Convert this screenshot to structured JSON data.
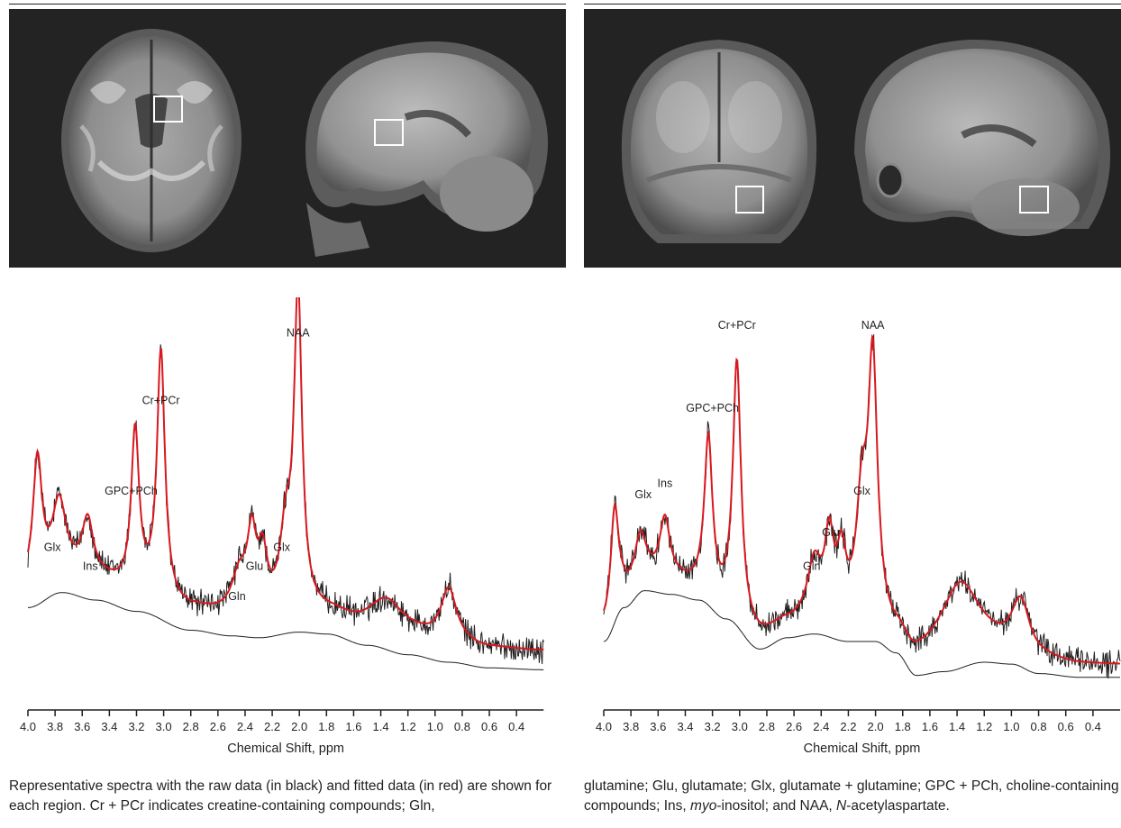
{
  "caption": {
    "left": {
      "p1": "Representative spectra with the raw data (in black) and fitted data (in red) are shown for each region. Cr + PCr indicates creatine-containing compounds; Gln,"
    },
    "right": {
      "p1": "glutamine; Glu, glutamate; Glx, glutamate + glutamine; GPC + PCh, choline-containing compounds; Ins, ",
      "p1_italic": "myo",
      "p2": "-inositol; and NAA, ",
      "p2_italic": "N",
      "p3": "-acetylaspartate."
    }
  },
  "colors": {
    "raw": "#231f20",
    "fit": "#d7191f",
    "baseline": "#231f20",
    "mri_background": "#232323",
    "voxel": "#ffffff"
  },
  "chart_data": [
    {
      "type": "line",
      "xlabel": "Chemical Shift, ppm",
      "ylabel": "",
      "xlim": [
        4.0,
        0.2
      ],
      "ylim": [
        0,
        1
      ],
      "x_reversed": true,
      "xticks": [
        4.0,
        3.8,
        3.6,
        3.4,
        3.2,
        3.0,
        2.8,
        2.6,
        2.4,
        2.2,
        2.0,
        1.8,
        1.6,
        1.4,
        1.2,
        1.0,
        0.8,
        0.6,
        0.4
      ],
      "xtick_labels": [
        "4.0",
        "3.8",
        "3.6",
        "3.4",
        "3.2",
        "3.0",
        "2.8",
        "2.6",
        "2.4",
        "2.2",
        "2.0",
        "1.8",
        "1.6",
        "1.4",
        "1.2",
        "1.0",
        "0.8",
        "0.6",
        "0.4"
      ],
      "baseline_value": 0.05,
      "baseline": [
        [
          4.0,
          0.2
        ],
        [
          3.75,
          0.24
        ],
        [
          3.5,
          0.22
        ],
        [
          3.2,
          0.19
        ],
        [
          2.8,
          0.14
        ],
        [
          2.5,
          0.125
        ],
        [
          2.3,
          0.12
        ],
        [
          2.0,
          0.135
        ],
        [
          1.8,
          0.13
        ],
        [
          1.5,
          0.1
        ],
        [
          1.2,
          0.075
        ],
        [
          0.9,
          0.055
        ],
        [
          0.6,
          0.04
        ],
        [
          0.2,
          0.035
        ]
      ],
      "peaks": [
        {
          "name": "peak_3.93",
          "center": 3.93,
          "height": 0.33,
          "width": 0.04
        },
        {
          "name": "Glx",
          "center": 3.77,
          "height": 0.18,
          "width": 0.06
        },
        {
          "name": "Ins",
          "center": 3.56,
          "height": 0.15,
          "width": 0.05
        },
        {
          "name": "GPC+PCh",
          "center": 3.21,
          "height": 0.42,
          "width": 0.035
        },
        {
          "name": "Cr+PCr",
          "center": 3.02,
          "height": 0.65,
          "width": 0.035
        },
        {
          "name": "Gln",
          "center": 2.44,
          "height": 0.1,
          "width": 0.07
        },
        {
          "name": "Glu",
          "center": 2.35,
          "height": 0.19,
          "width": 0.04
        },
        {
          "name": "Glu2",
          "center": 2.27,
          "height": 0.14,
          "width": 0.04
        },
        {
          "name": "Glx",
          "center": 2.1,
          "height": 0.19,
          "width": 0.05
        },
        {
          "name": "NAA",
          "center": 2.01,
          "height": 0.83,
          "width": 0.035
        },
        {
          "name": "lip1.35",
          "center": 1.35,
          "height": 0.08,
          "width": 0.15
        },
        {
          "name": "lip0.9",
          "center": 0.9,
          "height": 0.14,
          "width": 0.07
        }
      ],
      "labels": [
        {
          "text": "NAA",
          "x": 2.01,
          "y": 0.92
        },
        {
          "text": "Cr+PCr",
          "x": 3.02,
          "y": 0.74
        },
        {
          "text": "GPC+PCh",
          "x": 3.24,
          "y": 0.5
        },
        {
          "text": "Glx",
          "x": 3.82,
          "y": 0.35
        },
        {
          "text": "Ins",
          "x": 3.54,
          "y": 0.3
        },
        {
          "text": "Glu",
          "x": 2.33,
          "y": 0.3
        },
        {
          "text": "Gln",
          "x": 2.46,
          "y": 0.22
        },
        {
          "text": "Glx",
          "x": 2.13,
          "y": 0.35
        }
      ]
    },
    {
      "type": "line",
      "xlabel": "Chemical Shift, ppm",
      "ylabel": "",
      "xlim": [
        4.0,
        0.2
      ],
      "ylim": [
        0,
        1
      ],
      "x_reversed": true,
      "xticks": [
        4.0,
        3.8,
        3.6,
        3.4,
        3.2,
        3.0,
        2.8,
        2.6,
        2.4,
        2.2,
        2.0,
        1.8,
        1.6,
        1.4,
        1.2,
        1.0,
        0.8,
        0.6,
        0.4
      ],
      "xtick_labels": [
        "4.0",
        "3.8",
        "3.6",
        "3.4",
        "3.2",
        "3.0",
        "2.8",
        "2.6",
        "2.4",
        "2.2",
        "2.0",
        "1.8",
        "1.6",
        "1.4",
        "1.2",
        "1.0",
        "0.8",
        "0.6",
        "0.4"
      ],
      "baseline_value": 0.03,
      "baseline": [
        [
          4.0,
          0.11
        ],
        [
          3.85,
          0.2
        ],
        [
          3.7,
          0.245
        ],
        [
          3.5,
          0.235
        ],
        [
          3.3,
          0.22
        ],
        [
          3.1,
          0.17
        ],
        [
          2.85,
          0.09
        ],
        [
          2.65,
          0.12
        ],
        [
          2.45,
          0.13
        ],
        [
          2.2,
          0.11
        ],
        [
          2.0,
          0.11
        ],
        [
          1.85,
          0.08
        ],
        [
          1.7,
          0.02
        ],
        [
          1.5,
          0.03
        ],
        [
          1.2,
          0.055
        ],
        [
          1.0,
          0.05
        ],
        [
          0.8,
          0.025
        ],
        [
          0.5,
          0.015
        ],
        [
          0.2,
          0.015
        ]
      ],
      "peaks": [
        {
          "name": "peak_3.92",
          "center": 3.92,
          "height": 0.27,
          "width": 0.035
        },
        {
          "name": "Glx",
          "center": 3.73,
          "height": 0.11,
          "width": 0.05
        },
        {
          "name": "Ins",
          "center": 3.55,
          "height": 0.16,
          "width": 0.045
        },
        {
          "name": "GPC+PCh",
          "center": 3.23,
          "height": 0.4,
          "width": 0.035
        },
        {
          "name": "Cr+PCr",
          "center": 3.02,
          "height": 0.66,
          "width": 0.035
        },
        {
          "name": "Gln",
          "center": 2.45,
          "height": 0.14,
          "width": 0.06
        },
        {
          "name": "Glu",
          "center": 2.34,
          "height": 0.2,
          "width": 0.04
        },
        {
          "name": "Glu2",
          "center": 2.25,
          "height": 0.16,
          "width": 0.04
        },
        {
          "name": "Glx",
          "center": 2.1,
          "height": 0.3,
          "width": 0.05
        },
        {
          "name": "NAA",
          "center": 2.02,
          "height": 0.67,
          "width": 0.04
        },
        {
          "name": "lip1.35",
          "center": 1.38,
          "height": 0.19,
          "width": 0.17
        },
        {
          "name": "lip0.9",
          "center": 0.93,
          "height": 0.13,
          "width": 0.08
        }
      ],
      "labels": [
        {
          "text": "NAA",
          "x": 2.02,
          "y": 0.94
        },
        {
          "text": "Cr+PCr",
          "x": 3.02,
          "y": 0.94
        },
        {
          "text": "GPC+PCh",
          "x": 3.2,
          "y": 0.72
        },
        {
          "text": "Glx",
          "x": 3.71,
          "y": 0.49
        },
        {
          "text": "Ins",
          "x": 3.55,
          "y": 0.52
        },
        {
          "text": "Glu",
          "x": 2.33,
          "y": 0.39
        },
        {
          "text": "Gln",
          "x": 2.47,
          "y": 0.3
        },
        {
          "text": "Glx",
          "x": 2.1,
          "y": 0.5
        }
      ]
    }
  ]
}
